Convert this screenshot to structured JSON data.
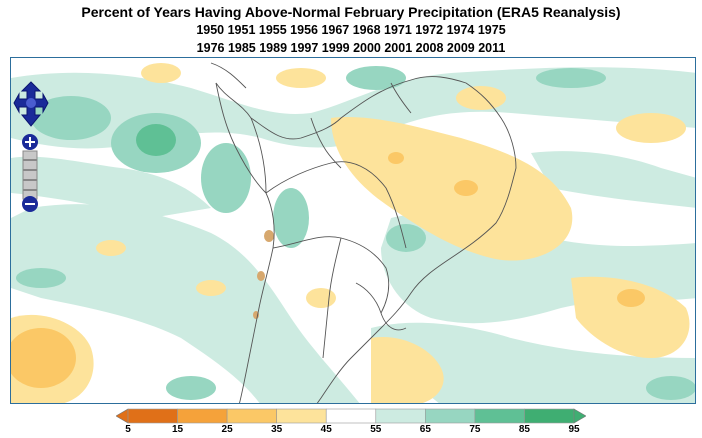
{
  "title": "Percent of Years Having Above-Normal February Precipitation (ERA5 Reanalysis)",
  "years_line1": "1950 1951 1955 1956 1967 1968 1971 1972 1974 1975",
  "years_line2": "1976 1985 1989 1997 1999 2000 2001 2008 2009 2011",
  "map": {
    "region": "South America",
    "controls": {
      "pan_icon": "four-way-arrow-icon",
      "zoom_in_icon": "plus-icon",
      "zoom_out_icon": "minus-icon"
    }
  },
  "legend": {
    "labels": [
      "5",
      "15",
      "25",
      "35",
      "45",
      "55",
      "65",
      "75",
      "85",
      "95"
    ],
    "colors": [
      "#e07018",
      "#f5a23a",
      "#fbc866",
      "#fde39b",
      "#ffffff",
      "#cdebe1",
      "#97d6c1",
      "#5fc095",
      "#3fae72"
    ]
  }
}
